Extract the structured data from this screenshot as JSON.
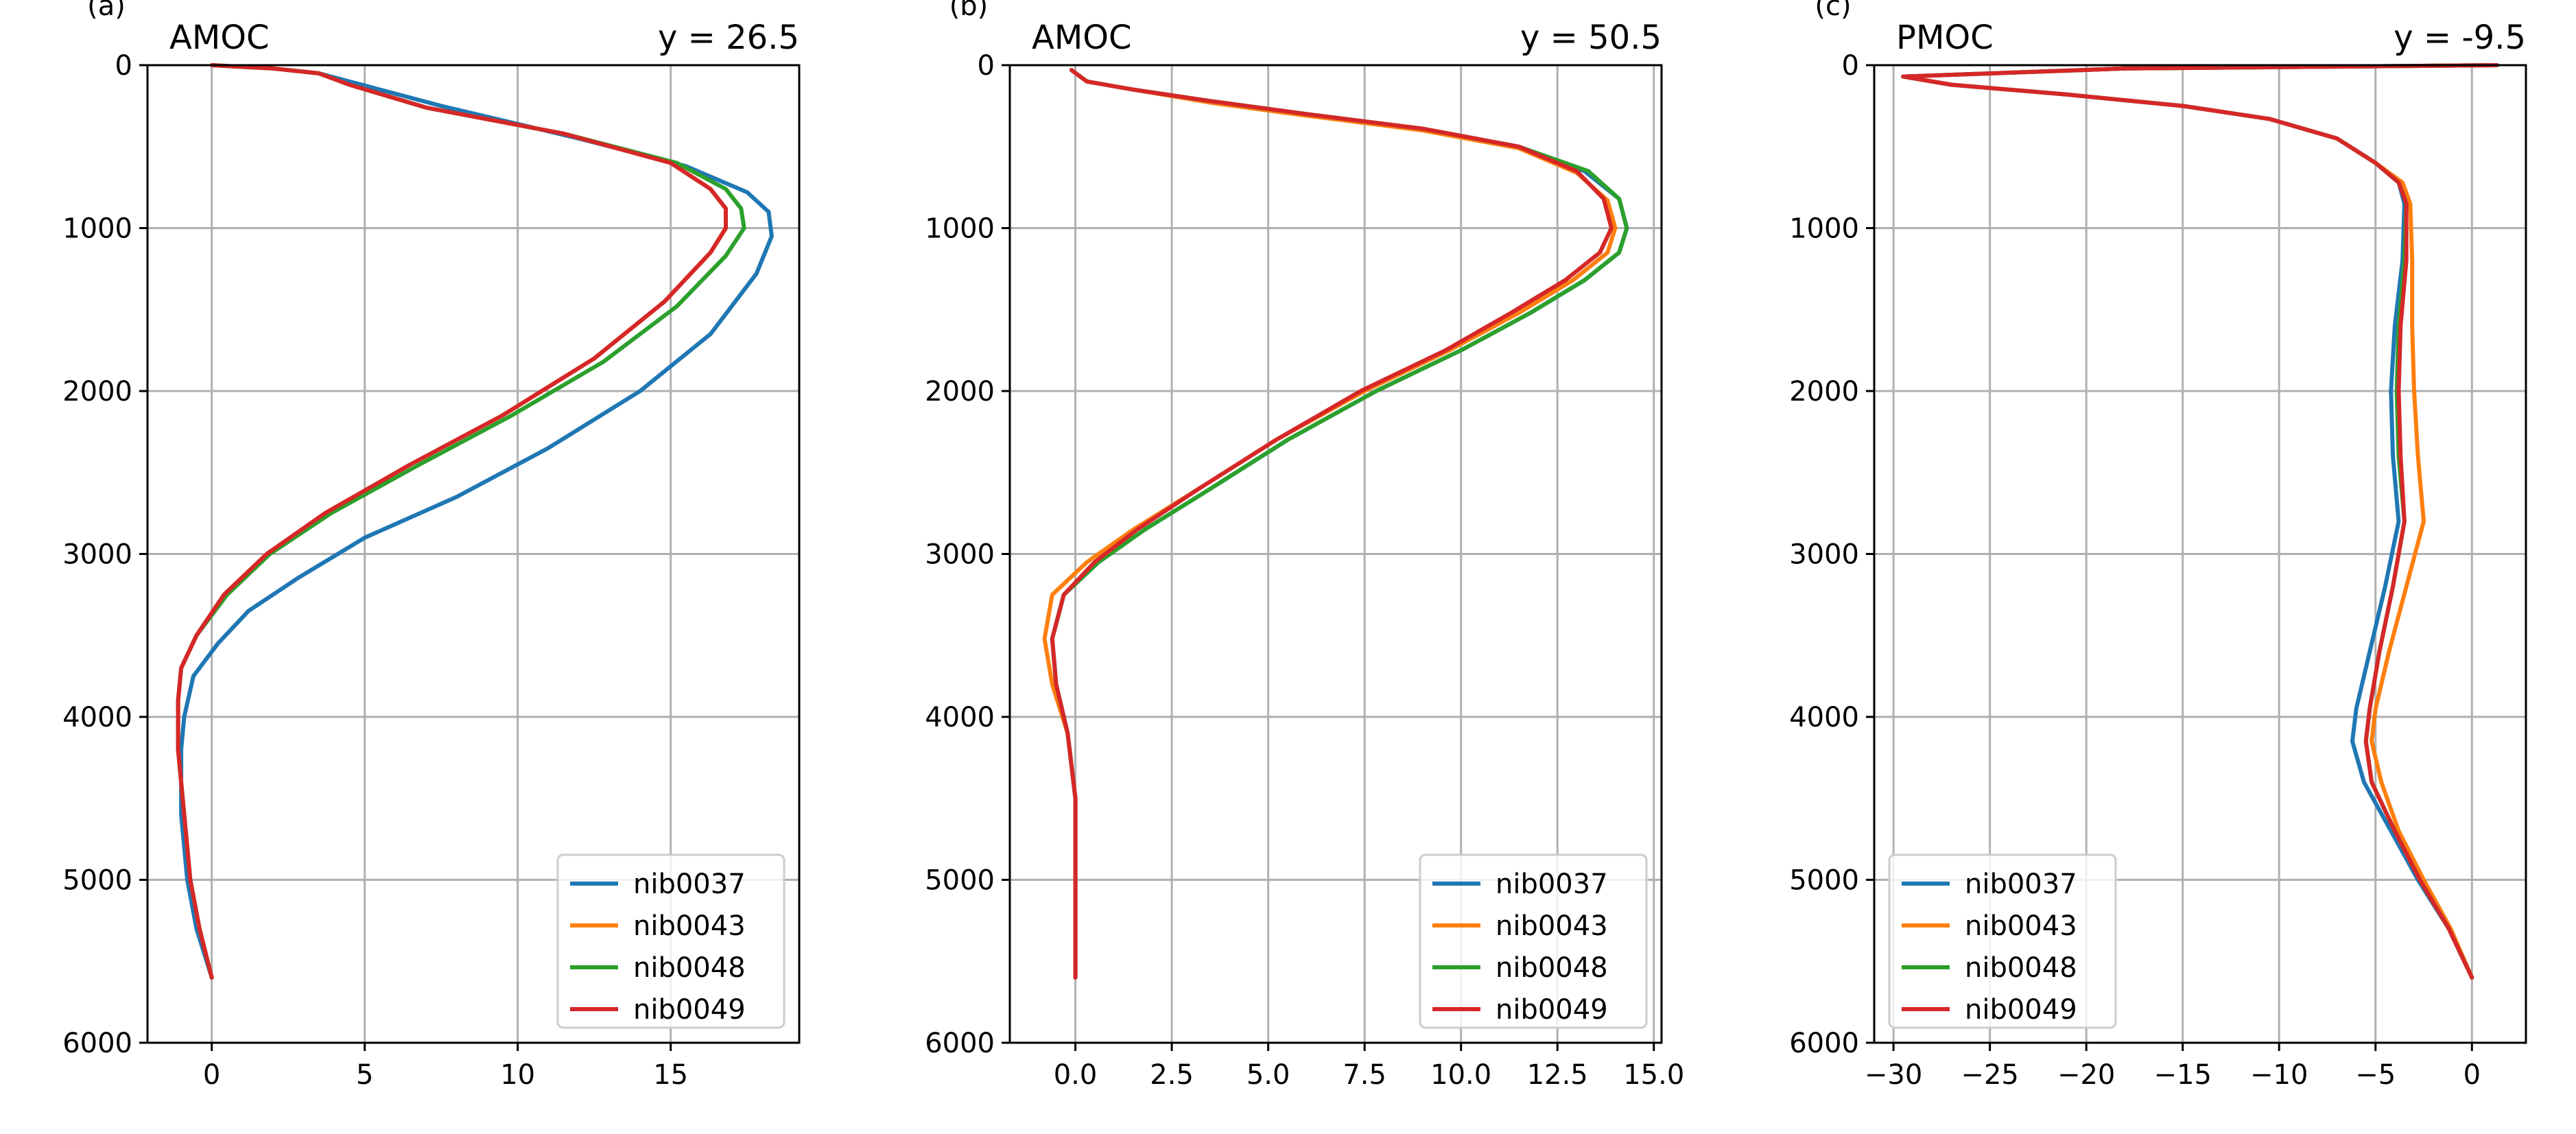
{
  "chart_data": [
    {
      "type": "line",
      "panel_label": "(a)",
      "title_left": "AMOC",
      "title_right": "y = 26.5",
      "xlim": [
        -2.1,
        19.2
      ],
      "ylim": [
        6000,
        0
      ],
      "xticks": [
        0,
        5,
        10,
        15
      ],
      "yticks": [
        0,
        1000,
        2000,
        3000,
        4000,
        5000,
        6000
      ],
      "xtick_labels": [
        "0",
        "5",
        "10",
        "15"
      ],
      "ytick_labels": [
        "0",
        "1000",
        "2000",
        "3000",
        "4000",
        "5000",
        "6000"
      ],
      "grid": true,
      "legend_position": "lower-right",
      "series": [
        {
          "name": "nib0037",
          "color": "#1f77b4",
          "x": [
            0,
            2.0,
            3.5,
            4.5,
            7.5,
            12.0,
            15.5,
            17.5,
            18.2,
            18.3,
            17.8,
            16.3,
            14.0,
            11.0,
            8.0,
            5.0,
            2.8,
            1.2,
            0.2,
            -0.6,
            -0.9,
            -1.0,
            -1.0,
            -0.8,
            -0.5,
            0
          ],
          "y": [
            0,
            20,
            50,
            100,
            250,
            450,
            620,
            780,
            900,
            1050,
            1280,
            1650,
            2000,
            2350,
            2650,
            2900,
            3150,
            3350,
            3550,
            3750,
            4000,
            4200,
            4600,
            5000,
            5300,
            5600
          ]
        },
        {
          "name": "nib0043",
          "color": "#ff7f0e",
          "x": [
            0,
            2.0,
            3.5,
            4.5,
            7.0,
            11.5,
            15.0,
            16.3,
            16.8,
            16.8,
            16.3,
            14.8,
            12.5,
            9.5,
            6.5,
            3.7,
            1.8,
            0.4,
            -0.5,
            -1.0,
            -1.1,
            -1.1,
            -0.9,
            -0.7,
            -0.4,
            0
          ],
          "y": [
            0,
            20,
            50,
            120,
            260,
            420,
            600,
            760,
            880,
            1000,
            1150,
            1450,
            1800,
            2150,
            2450,
            2750,
            3000,
            3250,
            3500,
            3700,
            3900,
            4200,
            4600,
            5000,
            5300,
            5600
          ]
        },
        {
          "name": "nib0048",
          "color": "#2ca02c",
          "x": [
            0,
            2.0,
            3.5,
            4.5,
            7.0,
            11.5,
            15.2,
            16.8,
            17.3,
            17.4,
            16.8,
            15.2,
            12.8,
            9.8,
            6.8,
            3.9,
            1.9,
            0.5,
            -0.5,
            -1.0,
            -1.1,
            -1.1,
            -0.9,
            -0.7,
            -0.4,
            0
          ],
          "y": [
            0,
            20,
            50,
            120,
            260,
            420,
            600,
            760,
            880,
            1000,
            1170,
            1480,
            1820,
            2150,
            2450,
            2750,
            3000,
            3250,
            3500,
            3700,
            3900,
            4200,
            4600,
            5000,
            5300,
            5600
          ]
        },
        {
          "name": "nib0049",
          "color": "#d62728",
          "x": [
            0,
            2.0,
            3.5,
            4.5,
            7.0,
            11.5,
            15.0,
            16.3,
            16.8,
            16.8,
            16.3,
            14.8,
            12.5,
            9.5,
            6.5,
            3.7,
            1.8,
            0.4,
            -0.5,
            -1.0,
            -1.1,
            -1.1,
            -0.9,
            -0.7,
            -0.4,
            0
          ],
          "y": [
            0,
            20,
            50,
            120,
            260,
            420,
            600,
            760,
            880,
            1000,
            1150,
            1450,
            1800,
            2150,
            2450,
            2750,
            3000,
            3250,
            3500,
            3700,
            3900,
            4200,
            4600,
            5000,
            5300,
            5600
          ]
        }
      ]
    },
    {
      "type": "line",
      "panel_label": "(b)",
      "title_left": "AMOC",
      "title_right": "y = 50.5",
      "xlim": [
        -1.7,
        15.2
      ],
      "ylim": [
        6000,
        0
      ],
      "xticks": [
        0,
        2.5,
        5,
        7.5,
        10,
        12.5,
        15
      ],
      "yticks": [
        0,
        1000,
        2000,
        3000,
        4000,
        5000,
        6000
      ],
      "xtick_labels": [
        "0.0",
        "2.5",
        "5.0",
        "7.5",
        "10.0",
        "12.5",
        "15.0"
      ],
      "ytick_labels": [
        "0",
        "1000",
        "2000",
        "3000",
        "4000",
        "5000",
        "6000"
      ],
      "grid": true,
      "legend_position": "lower-right",
      "series": [
        {
          "name": "nib0037",
          "color": "#1f77b4",
          "x": [
            -0.1,
            0.3,
            1.5,
            3.5,
            6.0,
            9.0,
            11.5,
            13.2,
            14.1,
            14.3,
            14.1,
            13.2,
            11.8,
            10.0,
            7.8,
            5.5,
            3.5,
            1.8,
            0.6,
            -0.3,
            -0.6,
            -0.5,
            -0.2,
            0,
            0,
            0
          ],
          "y": [
            30,
            100,
            150,
            220,
            300,
            390,
            500,
            650,
            820,
            1000,
            1150,
            1320,
            1520,
            1750,
            2000,
            2300,
            2600,
            2850,
            3050,
            3250,
            3520,
            3800,
            4100,
            4500,
            5000,
            5600
          ]
        },
        {
          "name": "nib0043",
          "color": "#ff7f0e",
          "x": [
            -0.1,
            0.3,
            1.5,
            3.5,
            6.0,
            9.0,
            11.5,
            13.0,
            13.8,
            14.0,
            13.8,
            12.9,
            11.5,
            9.7,
            7.5,
            5.2,
            3.2,
            1.5,
            0.3,
            -0.6,
            -0.8,
            -0.6,
            -0.2,
            0,
            0,
            0
          ],
          "y": [
            30,
            100,
            150,
            230,
            310,
            400,
            510,
            660,
            830,
            1000,
            1150,
            1320,
            1520,
            1750,
            2000,
            2300,
            2600,
            2850,
            3050,
            3250,
            3520,
            3800,
            4100,
            4500,
            5000,
            5600
          ]
        },
        {
          "name": "nib0048",
          "color": "#2ca02c",
          "x": [
            -0.1,
            0.3,
            1.5,
            3.5,
            6.0,
            9.0,
            11.5,
            13.3,
            14.1,
            14.3,
            14.1,
            13.2,
            11.8,
            10.0,
            7.8,
            5.5,
            3.5,
            1.8,
            0.6,
            -0.3,
            -0.6,
            -0.5,
            -0.2,
            0,
            0,
            0
          ],
          "y": [
            30,
            100,
            150,
            220,
            300,
            390,
            500,
            650,
            820,
            1000,
            1150,
            1320,
            1520,
            1750,
            2000,
            2300,
            2600,
            2850,
            3050,
            3250,
            3520,
            3800,
            4100,
            4500,
            5000,
            5600
          ]
        },
        {
          "name": "nib0049",
          "color": "#d62728",
          "x": [
            -0.1,
            0.3,
            1.5,
            3.5,
            6.0,
            9.0,
            11.5,
            13.0,
            13.7,
            13.9,
            13.6,
            12.7,
            11.3,
            9.6,
            7.4,
            5.2,
            3.2,
            1.6,
            0.5,
            -0.3,
            -0.6,
            -0.5,
            -0.2,
            0,
            0,
            0
          ],
          "y": [
            30,
            100,
            150,
            220,
            300,
            390,
            500,
            650,
            820,
            1000,
            1150,
            1320,
            1520,
            1750,
            2000,
            2300,
            2600,
            2850,
            3050,
            3250,
            3520,
            3800,
            4100,
            4500,
            5000,
            5600
          ]
        }
      ]
    },
    {
      "type": "line",
      "panel_label": "(c)",
      "title_left": "PMOC",
      "title_right": "y = -9.5",
      "xlim": [
        -31,
        2.8
      ],
      "ylim": [
        6000,
        0
      ],
      "xticks": [
        -30,
        -25,
        -20,
        -15,
        -10,
        -5,
        0
      ],
      "yticks": [
        0,
        1000,
        2000,
        3000,
        4000,
        5000,
        6000
      ],
      "xtick_labels": [
        "−30",
        "−25",
        "−20",
        "−15",
        "−10",
        "−5",
        "0"
      ],
      "ytick_labels": [
        "0",
        "1000",
        "2000",
        "3000",
        "4000",
        "5000",
        "6000"
      ],
      "grid": true,
      "legend_position": "lower-left",
      "series": [
        {
          "name": "nib0037",
          "color": "#1f77b4",
          "x": [
            1.3,
            -18,
            -29.5,
            -27,
            -21,
            -15,
            -10.5,
            -7,
            -5,
            -3.8,
            -3.5,
            -3.6,
            -4.0,
            -4.2,
            -4.1,
            -3.8,
            -4.5,
            -5.3,
            -6.0,
            -6.2,
            -5.6,
            -4.2,
            -2.8,
            -1.2,
            0
          ],
          "y": [
            0,
            20,
            70,
            120,
            180,
            250,
            330,
            450,
            600,
            720,
            850,
            1200,
            1600,
            2000,
            2400,
            2800,
            3200,
            3600,
            3950,
            4150,
            4400,
            4700,
            5000,
            5300,
            5600
          ]
        },
        {
          "name": "nib0043",
          "color": "#ff7f0e",
          "x": [
            1.3,
            -18,
            -29.5,
            -27,
            -21,
            -15,
            -10.5,
            -7,
            -5,
            -3.6,
            -3.2,
            -3.1,
            -3.1,
            -3.0,
            -2.8,
            -2.5,
            -3.4,
            -4.3,
            -5.0,
            -5.2,
            -4.7,
            -3.8,
            -2.5,
            -1.1,
            0
          ],
          "y": [
            0,
            20,
            70,
            120,
            180,
            250,
            330,
            450,
            600,
            720,
            850,
            1200,
            1600,
            2000,
            2400,
            2800,
            3200,
            3600,
            3950,
            4150,
            4400,
            4700,
            5000,
            5300,
            5600
          ]
        },
        {
          "name": "nib0048",
          "color": "#2ca02c",
          "x": [
            1.3,
            -18,
            -29.5,
            -27,
            -21,
            -15,
            -10.5,
            -7,
            -5,
            -3.8,
            -3.4,
            -3.5,
            -3.8,
            -3.9,
            -3.8,
            -3.5,
            -4.1,
            -4.8,
            -5.3,
            -5.5,
            -5.2,
            -4.0,
            -2.7,
            -1.2,
            0
          ],
          "y": [
            0,
            20,
            70,
            120,
            180,
            250,
            330,
            450,
            600,
            720,
            850,
            1200,
            1600,
            2000,
            2400,
            2800,
            3200,
            3600,
            3950,
            4150,
            4400,
            4700,
            5000,
            5300,
            5600
          ]
        },
        {
          "name": "nib0049",
          "color": "#d62728",
          "x": [
            1.3,
            -18,
            -29.5,
            -27,
            -21,
            -15,
            -10.5,
            -7,
            -5,
            -3.8,
            -3.4,
            -3.4,
            -3.7,
            -3.8,
            -3.7,
            -3.5,
            -4.1,
            -4.8,
            -5.3,
            -5.5,
            -5.2,
            -4.0,
            -2.7,
            -1.2,
            0
          ],
          "y": [
            0,
            20,
            70,
            120,
            180,
            250,
            330,
            450,
            600,
            720,
            850,
            1200,
            1600,
            2000,
            2400,
            2800,
            3200,
            3600,
            3950,
            4150,
            4400,
            4700,
            5000,
            5300,
            5600
          ]
        }
      ]
    }
  ]
}
